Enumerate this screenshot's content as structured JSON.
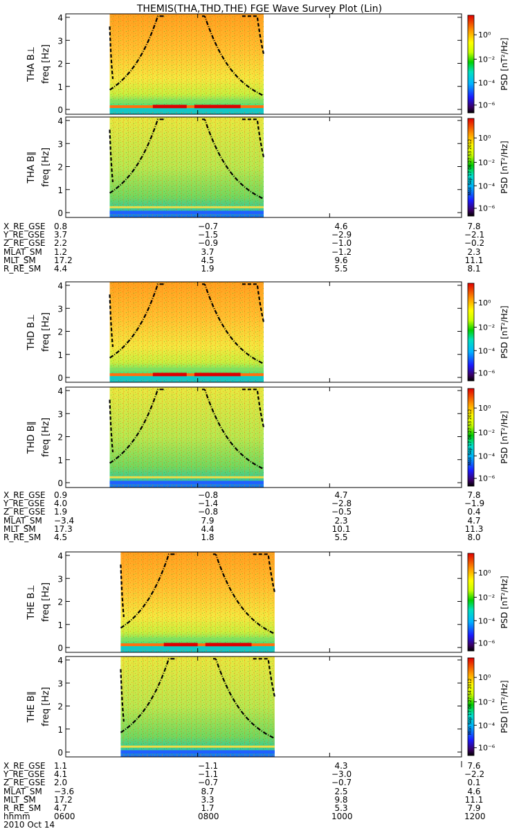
{
  "title": "THEMIS(THA,THD,THE) FGE Wave Survey Plot (Lin)",
  "colorbar": {
    "label": "PSD [nT²/Hz]",
    "ticks": [
      "10⁰",
      "10⁻²",
      "10⁻⁴",
      "10⁻⁶"
    ],
    "stamps": [
      "Mon Sep 17 06:27:53 2012",
      "Mon Sep 17 06:27:53 2012",
      "Mon Sep 17 06:27:54 2012"
    ]
  },
  "panels": [
    {
      "probe_label": "THA B⊥",
      "ylabel": "freq [Hz]"
    },
    {
      "probe_label": "THA B∥",
      "ylabel": "freq [Hz]"
    },
    {
      "probe_label": "THD B⊥",
      "ylabel": "freq [Hz]"
    },
    {
      "probe_label": "THD B∥",
      "ylabel": "freq [Hz]"
    },
    {
      "probe_label": "THE B⊥",
      "ylabel": "freq [Hz]"
    },
    {
      "probe_label": "THE B∥",
      "ylabel": "freq [Hz]"
    }
  ],
  "yticks": [
    "0",
    "1",
    "2",
    "3",
    "4"
  ],
  "ephemeris": [
    {
      "labels": [
        "X_RE_GSE",
        "Y_RE_GSE",
        "Z_RE_GSE",
        "MLAT_SM",
        "MLT_SM",
        "R_RE_SM"
      ],
      "values": [
        [
          "0.8",
          "−0.7",
          "4.6",
          "7.8"
        ],
        [
          "3.7",
          "−1.5",
          "−2.9",
          "−2.1"
        ],
        [
          "2.2",
          "−0.9",
          "−1.0",
          "−0.2"
        ],
        [
          "1.2",
          "3.7",
          "−1.2",
          "2.3"
        ],
        [
          "17.2",
          "4.5",
          "9.6",
          "11.1"
        ],
        [
          "4.4",
          "1.9",
          "5.5",
          "8.1"
        ]
      ]
    },
    {
      "labels": [
        "X_RE_GSE",
        "Y_RE_GSE",
        "Z_RE_GSE",
        "MLAT_SM",
        "MLT_SM",
        "R_RE_SM"
      ],
      "values": [
        [
          "0.9",
          "−0.8",
          "4.7",
          "7.8"
        ],
        [
          "4.0",
          "−1.4",
          "−2.8",
          "−1.9"
        ],
        [
          "1.9",
          "−0.8",
          "−0.5",
          "0.4"
        ],
        [
          "−3.4",
          "7.9",
          "2.3",
          "4.7"
        ],
        [
          "17.3",
          "4.4",
          "10.1",
          "11.3"
        ],
        [
          "4.5",
          "1.8",
          "5.5",
          "8.0"
        ]
      ]
    },
    {
      "labels": [
        "X_RE_GSE",
        "Y_RE_GSE",
        "Z_RE_GSE",
        "MLAT_SM",
        "MLT_SM",
        "R_RE_SM",
        "hhmm"
      ],
      "values": [
        [
          "1.1",
          "−1.1",
          "4.3",
          "7.6"
        ],
        [
          "4.1",
          "−1.1",
          "−3.0",
          "−2.2"
        ],
        [
          "2.0",
          "−0.7",
          "−0.7",
          "0.1"
        ],
        [
          "−3.6",
          "8.7",
          "2.5",
          "4.6"
        ],
        [
          "17.2",
          "3.3",
          "9.8",
          "11.1"
        ],
        [
          "4.7",
          "1.7",
          "5.3",
          "7.9"
        ],
        [
          "0600",
          "0800",
          "1000",
          "1200"
        ]
      ]
    }
  ],
  "date_label": "2010 Oct 14",
  "chart_data": {
    "type": "heatmap",
    "title": "THEMIS(THA,THD,THE) FGE Wave Survey Plot (Lin)",
    "x_axis": {
      "ticks": [
        "0600",
        "0800",
        "1000",
        "1200"
      ],
      "label": "hhmm",
      "date": "2010 Oct 14"
    },
    "y_axis": {
      "label": "freq [Hz]",
      "ylim": [
        0,
        4
      ]
    },
    "color_scale": {
      "label": "PSD [nT²/Hz]",
      "log": true,
      "range": [
        "1e-6",
        "1e1"
      ]
    },
    "panels": [
      {
        "name": "THA B⊥",
        "data_start": "0640",
        "data_end": "0900"
      },
      {
        "name": "THA B∥",
        "data_start": "0640",
        "data_end": "0900"
      },
      {
        "name": "THD B⊥",
        "data_start": "0640",
        "data_end": "0900"
      },
      {
        "name": "THD B∥",
        "data_start": "0640",
        "data_end": "0900"
      },
      {
        "name": "THE B⊥",
        "data_start": "0650",
        "data_end": "0910"
      },
      {
        "name": "THE B∥",
        "data_start": "0650",
        "data_end": "0910"
      }
    ]
  }
}
